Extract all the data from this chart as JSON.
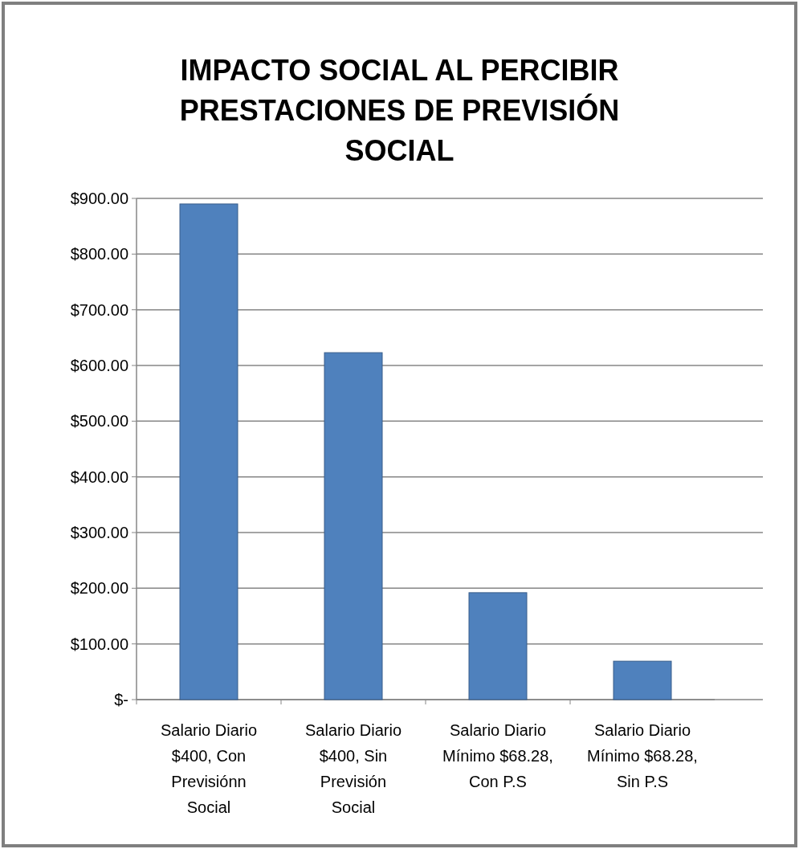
{
  "chart_data": {
    "type": "bar",
    "title": "IMPACTO SOCIAL AL PERCIBIR PRESTACIONES DE PREVISIÓN SOCIAL",
    "categories": [
      "Salario Diario $400, Con Previsiónn Social",
      "Salario Diario $400, Sin Previsión Social",
      "Salario Diario Mínimo $68.28, Con P.S",
      "Salario Diario Mínimo $68.28, Sin P.S"
    ],
    "values": [
      890,
      623,
      192,
      69
    ],
    "color": "#4f81bd",
    "ylim": [
      0,
      900
    ],
    "yticks": [
      {
        "value": 0,
        "label": "$-"
      },
      {
        "value": 100,
        "label": "$100.00"
      },
      {
        "value": 200,
        "label": "$200.00"
      },
      {
        "value": 300,
        "label": "$300.00"
      },
      {
        "value": 400,
        "label": "$400.00"
      },
      {
        "value": 500,
        "label": "$500.00"
      },
      {
        "value": 600,
        "label": "$600.00"
      },
      {
        "value": 700,
        "label": "$700.00"
      },
      {
        "value": 800,
        "label": "$800.00"
      },
      {
        "value": 900,
        "label": "$900.00"
      }
    ],
    "grid": "y"
  }
}
